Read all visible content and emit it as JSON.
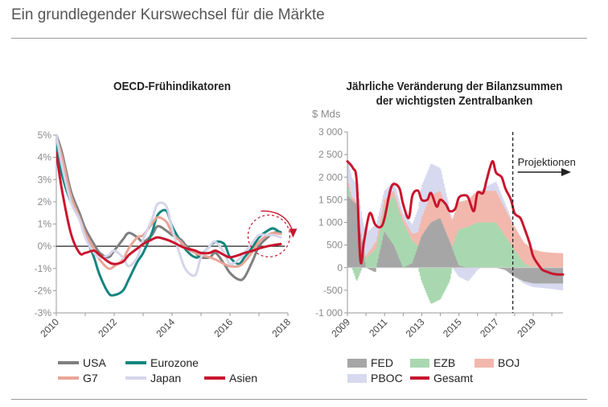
{
  "page": {
    "title": "Ein grundlegender Kurswechsel für die Märkte"
  },
  "chart_data": [
    {
      "type": "line",
      "title": "OECD-Frühindikatoren",
      "xlim": [
        2010,
        2018
      ],
      "ylim": [
        -3,
        5
      ],
      "x_ticks": [
        2010,
        2012,
        2014,
        2016,
        2018
      ],
      "y_ticks": [
        {
          "value": 5,
          "label": "5%"
        },
        {
          "value": 4,
          "label": "4%"
        },
        {
          "value": 3,
          "label": "3%"
        },
        {
          "value": 2,
          "label": "2%"
        },
        {
          "value": 1,
          "label": "1%"
        },
        {
          "value": 0,
          "label": "0%"
        },
        {
          "value": -1,
          "label": "-1%"
        },
        {
          "value": -2,
          "label": "-2%"
        },
        {
          "value": -3,
          "label": "-3%"
        }
      ],
      "grid": false,
      "legend": "bottom",
      "series": [
        {
          "name": "USA",
          "color": "#7f7f7f",
          "width": 3,
          "x": [
            2010.0,
            2010.2,
            2010.5,
            2010.8,
            2011.0,
            2011.3,
            2011.5,
            2011.8,
            2012.0,
            2012.3,
            2012.5,
            2012.8,
            2013.0,
            2013.3,
            2013.5,
            2013.8,
            2014.0,
            2014.3,
            2014.5,
            2014.8,
            2015.0,
            2015.3,
            2015.5,
            2015.8,
            2016.0,
            2016.3,
            2016.5,
            2016.8,
            2017.0,
            2017.3,
            2017.5,
            2017.75
          ],
          "y": [
            5.0,
            4.2,
            2.5,
            1.5,
            0.8,
            0.1,
            -0.3,
            -0.5,
            -0.2,
            0.3,
            0.6,
            0.4,
            0.2,
            0.5,
            0.9,
            0.7,
            0.5,
            0.3,
            0.0,
            -0.3,
            -0.5,
            -0.5,
            -0.3,
            -0.8,
            -1.2,
            -1.5,
            -1.4,
            -0.6,
            0.0,
            0.4,
            0.6,
            0.65
          ]
        },
        {
          "name": "Eurozone",
          "color": "#14857f",
          "width": 3,
          "x": [
            2010.0,
            2010.2,
            2010.5,
            2010.8,
            2011.0,
            2011.3,
            2011.5,
            2011.8,
            2012.0,
            2012.3,
            2012.5,
            2012.8,
            2013.0,
            2013.3,
            2013.5,
            2013.8,
            2014.0,
            2014.3,
            2014.5,
            2014.8,
            2015.0,
            2015.3,
            2015.5,
            2015.8,
            2016.0,
            2016.3,
            2016.5,
            2016.8,
            2017.0,
            2017.3,
            2017.5,
            2017.75
          ],
          "y": [
            4.5,
            3.2,
            2.0,
            1.3,
            0.5,
            -0.5,
            -1.3,
            -2.1,
            -2.2,
            -2.0,
            -1.5,
            -0.7,
            -0.3,
            0.6,
            1.4,
            1.6,
            0.9,
            0.2,
            -0.2,
            -0.5,
            -0.4,
            0.0,
            0.2,
            0.1,
            -0.5,
            -0.8,
            -0.5,
            0.0,
            0.4,
            0.7,
            0.8,
            0.6
          ]
        },
        {
          "name": "G7",
          "color": "#e8a597",
          "width": 3,
          "x": [
            2010.0,
            2010.2,
            2010.5,
            2010.8,
            2011.0,
            2011.3,
            2011.5,
            2011.8,
            2012.0,
            2012.3,
            2012.5,
            2012.8,
            2013.0,
            2013.3,
            2013.5,
            2013.8,
            2014.0,
            2014.3,
            2014.5,
            2014.8,
            2015.0,
            2015.3,
            2015.5,
            2015.8,
            2016.0,
            2016.3,
            2016.5,
            2016.8,
            2017.0,
            2017.3,
            2017.5,
            2017.75
          ],
          "y": [
            4.9,
            4.0,
            2.3,
            1.3,
            0.6,
            -0.1,
            -0.6,
            -1.0,
            -0.9,
            -0.6,
            -0.1,
            0.4,
            0.5,
            1.0,
            1.3,
            1.1,
            0.6,
            0.2,
            -0.1,
            -0.3,
            -0.4,
            -0.5,
            -0.6,
            -0.8,
            -0.9,
            -0.9,
            -0.7,
            -0.2,
            0.2,
            0.5,
            0.6,
            0.55
          ]
        },
        {
          "name": "Japan",
          "color": "#d5d5ea",
          "width": 3,
          "x": [
            2010.0,
            2010.2,
            2010.5,
            2010.8,
            2011.0,
            2011.3,
            2011.5,
            2011.8,
            2012.0,
            2012.3,
            2012.5,
            2012.8,
            2013.0,
            2013.3,
            2013.5,
            2013.8,
            2014.0,
            2014.3,
            2014.5,
            2014.8,
            2015.0,
            2015.3,
            2015.5,
            2015.8,
            2016.0,
            2016.3,
            2016.5,
            2016.8,
            2017.0,
            2017.3,
            2017.5,
            2017.75
          ],
          "y": [
            5.0,
            3.6,
            2.0,
            1.2,
            0.4,
            -0.3,
            -0.5,
            -0.4,
            -0.2,
            -0.5,
            -0.9,
            -0.5,
            0.3,
            1.2,
            1.9,
            1.8,
            0.8,
            -0.5,
            -1.1,
            -1.3,
            -0.5,
            0.0,
            0.2,
            -0.3,
            -0.8,
            -0.6,
            -0.3,
            0.2,
            0.5,
            0.5,
            0.5,
            0.4
          ]
        },
        {
          "name": "Asien",
          "color": "#c9152d",
          "width": 3,
          "x": [
            2010.0,
            2010.2,
            2010.5,
            2010.8,
            2011.0,
            2011.3,
            2011.5,
            2011.8,
            2012.0,
            2012.3,
            2012.5,
            2012.8,
            2013.0,
            2013.3,
            2013.5,
            2013.8,
            2014.0,
            2014.3,
            2014.5,
            2014.8,
            2015.0,
            2015.3,
            2015.5,
            2015.8,
            2016.0,
            2016.3,
            2016.5,
            2016.8,
            2017.0,
            2017.3,
            2017.5,
            2017.75
          ],
          "y": [
            4.2,
            2.5,
            0.6,
            -0.3,
            -0.3,
            -0.2,
            -0.4,
            -0.7,
            -0.8,
            -0.7,
            -0.4,
            -0.1,
            0.1,
            0.3,
            0.4,
            0.3,
            0.2,
            0.0,
            -0.1,
            -0.2,
            -0.3,
            -0.3,
            -0.2,
            -0.4,
            -0.5,
            -0.4,
            -0.3,
            -0.2,
            -0.1,
            0.0,
            0.05,
            0.1
          ]
        }
      ],
      "annotation": {
        "type": "dashed-circle-with-arrow",
        "color": "#c9152d",
        "x": 2017.4,
        "y": 0.1
      }
    },
    {
      "type": "bar+line",
      "title": [
        "Jährliche Veränderung der Bilanzsummen",
        "der wichtigsten Zentralbanken"
      ],
      "ylabel": "$ Mds",
      "xlim": [
        2009,
        2020.6
      ],
      "ylim": [
        -1000,
        3000
      ],
      "x_ticks": [
        2009,
        2011,
        2013,
        2015,
        2017,
        2019
      ],
      "y_ticks": [
        {
          "value": 3000,
          "label": "3 000"
        },
        {
          "value": 2500,
          "label": "2 500"
        },
        {
          "value": 2000,
          "label": "2 000"
        },
        {
          "value": 1500,
          "label": "1 500"
        },
        {
          "value": 1000,
          "label": "1 000"
        },
        {
          "value": 500,
          "label": "500"
        },
        {
          "value": 0,
          "label": "0"
        },
        {
          "value": -500,
          "label": "-500"
        },
        {
          "value": -1000,
          "label": "-1 000"
        }
      ],
      "grid": false,
      "legend": "bottom",
      "projection": {
        "x": 2017.9,
        "label": "Projektionen"
      },
      "bar_series": [
        {
          "name": "FED",
          "color": "#a6a6a6",
          "x": [
            2009,
            2009.5,
            2010,
            2010.5,
            2011,
            2011.5,
            2012,
            2012.5,
            2013,
            2013.5,
            2014,
            2014.5,
            2015,
            2015.5,
            2016,
            2016.5,
            2017,
            2017.5,
            2018,
            2018.5,
            2019,
            2019.5,
            2020,
            2020.5
          ],
          "y": [
            1600,
            1400,
            0,
            -100,
            800,
            500,
            0,
            100,
            700,
            1000,
            1100,
            600,
            50,
            0,
            0,
            0,
            0,
            -50,
            -200,
            -300,
            -350,
            -350,
            -350,
            -350
          ]
        },
        {
          "name": "EZB",
          "color": "#a9d8b0",
          "x": [
            2009,
            2009.5,
            2010,
            2010.5,
            2011,
            2011.5,
            2012,
            2012.5,
            2013,
            2013.5,
            2014,
            2014.5,
            2015,
            2015.5,
            2016,
            2016.5,
            2017,
            2017.5,
            2018,
            2018.5,
            2019,
            2019.5,
            2020,
            2020.5
          ],
          "y": [
            300,
            -300,
            200,
            400,
            500,
            1100,
            1000,
            500,
            -300,
            -800,
            -700,
            -300,
            800,
            900,
            1000,
            1000,
            1000,
            700,
            400,
            100,
            0,
            0,
            0,
            0
          ]
        },
        {
          "name": "BOJ",
          "color": "#f2b8ad",
          "x": [
            2009,
            2009.5,
            2010,
            2010.5,
            2011,
            2011.5,
            2012,
            2012.5,
            2013,
            2013.5,
            2014,
            2014.5,
            2015,
            2015.5,
            2016,
            2016.5,
            2017,
            2017.5,
            2018,
            2018.5,
            2019,
            2019.5,
            2020,
            2020.5
          ],
          "y": [
            100,
            50,
            50,
            150,
            200,
            100,
            100,
            150,
            400,
            600,
            600,
            600,
            600,
            600,
            700,
            700,
            700,
            600,
            500,
            450,
            400,
            350,
            330,
            320
          ]
        },
        {
          "name": "PBOC",
          "color": "#d7d9ef",
          "x": [
            2009,
            2009.5,
            2010,
            2010.5,
            2011,
            2011.5,
            2012,
            2012.5,
            2013,
            2013.5,
            2014,
            2014.5,
            2015,
            2015.5,
            2016,
            2016.5,
            2017,
            2017.5,
            2018,
            2018.5,
            2019,
            2019.5,
            2020,
            2020.5
          ],
          "y": [
            400,
            400,
            500,
            400,
            200,
            200,
            100,
            200,
            700,
            700,
            500,
            100,
            -200,
            -300,
            -50,
            100,
            200,
            100,
            0,
            -50,
            -80,
            -100,
            -120,
            -150
          ]
        }
      ],
      "line_series": {
        "name": "Gesamt",
        "color": "#c9152d",
        "width": 3,
        "x": [
          2009.0,
          2009.3,
          2009.5,
          2009.7,
          2009.9,
          2010.2,
          2010.5,
          2010.8,
          2011.0,
          2011.3,
          2011.5,
          2011.8,
          2012.0,
          2012.3,
          2012.5,
          2012.8,
          2013.0,
          2013.3,
          2013.5,
          2013.8,
          2014.0,
          2014.3,
          2014.5,
          2014.8,
          2015.0,
          2015.3,
          2015.5,
          2015.8,
          2016.0,
          2016.3,
          2016.5,
          2016.8,
          2017.0,
          2017.3,
          2017.5,
          2017.8,
          2018.0,
          2018.3,
          2018.5,
          2018.8,
          2019.0,
          2019.3,
          2019.5,
          2019.8,
          2020.0,
          2020.3,
          2020.6
        ],
        "y": [
          2350,
          2200,
          1900,
          150,
          600,
          1200,
          950,
          900,
          1100,
          1700,
          1850,
          1750,
          1400,
          1100,
          1600,
          1700,
          1500,
          1500,
          1650,
          1350,
          1500,
          1400,
          1250,
          1300,
          1550,
          1600,
          1550,
          1250,
          1650,
          1650,
          1950,
          2350,
          2100,
          2000,
          1750,
          1500,
          1200,
          1100,
          900,
          550,
          250,
          50,
          -50,
          -100,
          -130,
          -150,
          -150
        ]
      }
    }
  ],
  "legends": {
    "left": [
      {
        "name": "USA",
        "color": "#7f7f7f"
      },
      {
        "name": "Eurozone",
        "color": "#14857f"
      },
      {
        "name": "G7",
        "color": "#e8a597"
      },
      {
        "name": "Japan",
        "color": "#d5d5ea"
      },
      {
        "name": "Asien",
        "color": "#c9152d"
      }
    ],
    "right": [
      {
        "name": "FED",
        "color": "#a6a6a6",
        "kind": "box"
      },
      {
        "name": "EZB",
        "color": "#a9d8b0",
        "kind": "box"
      },
      {
        "name": "BOJ",
        "color": "#f2b8ad",
        "kind": "box"
      },
      {
        "name": "PBOC",
        "color": "#d7d9ef",
        "kind": "box"
      },
      {
        "name": "Gesamt",
        "color": "#c9152d",
        "kind": "line"
      }
    ]
  }
}
